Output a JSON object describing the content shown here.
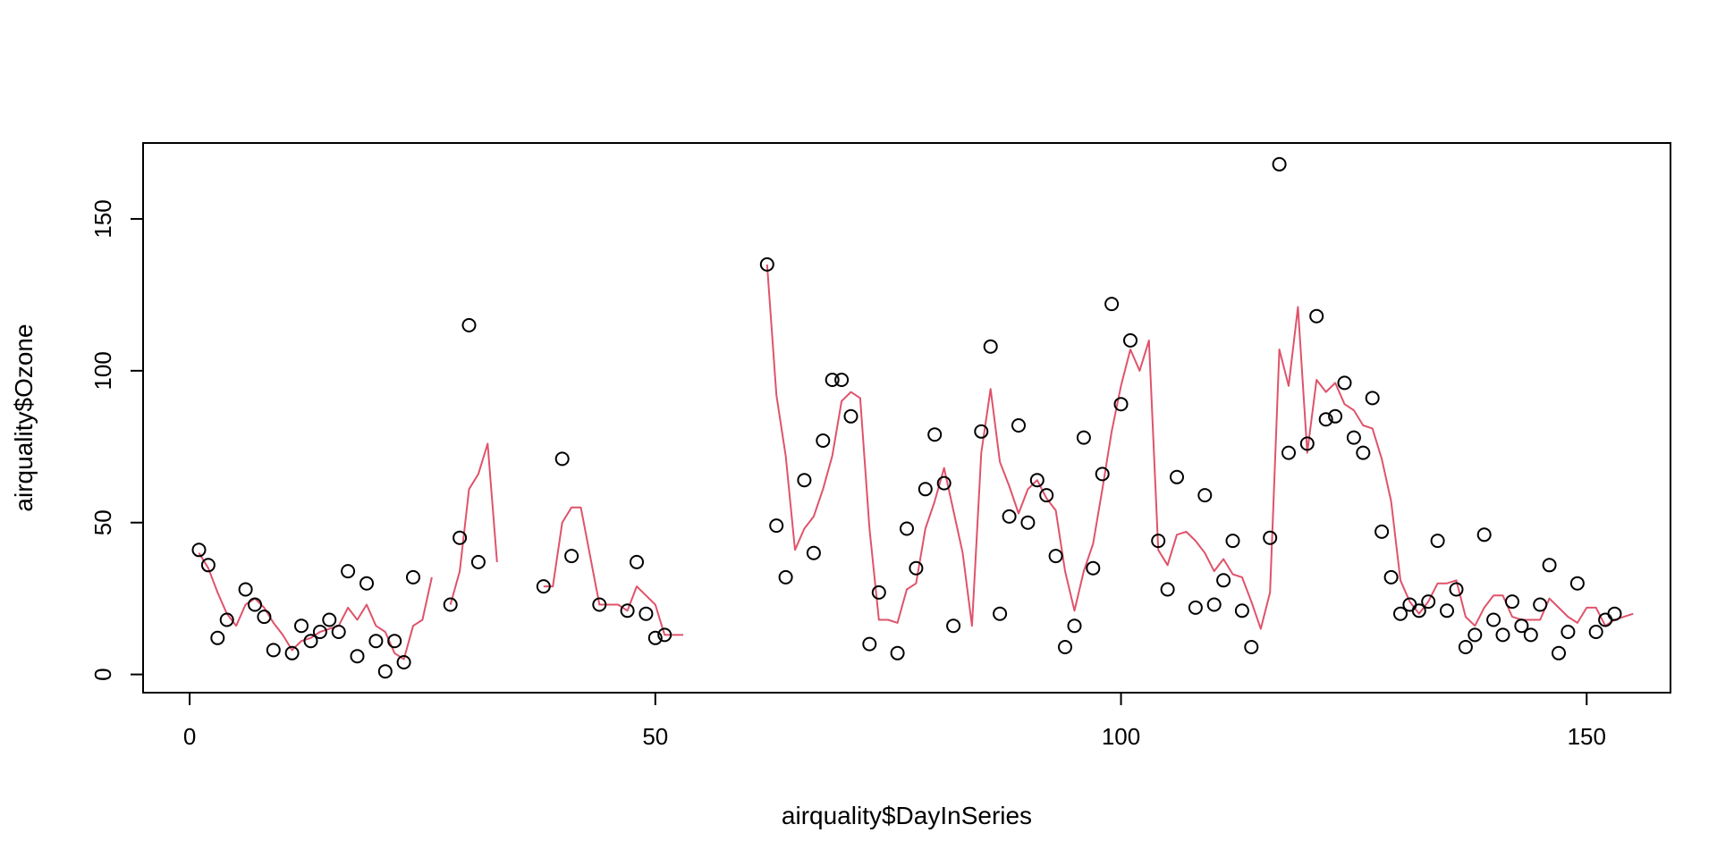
{
  "chart_data": {
    "type": "scatter",
    "xlabel": "airquality$DayInSeries",
    "ylabel": "airquality$Ozone",
    "xlim": [
      -5,
      159
    ],
    "ylim": [
      -6,
      175
    ],
    "x_ticks": [
      "0",
      "50",
      "100",
      "150"
    ],
    "y_ticks": [
      "0",
      "50",
      "100",
      "150"
    ],
    "grid": false,
    "legend": "none",
    "colors": {
      "points": "#000000",
      "line": "#DF536B",
      "axes": "#000000"
    },
    "series": [
      {
        "type": "scatter",
        "marker": "open-circle",
        "points": [
          [
            1,
            41
          ],
          [
            2,
            36
          ],
          [
            3,
            12
          ],
          [
            4,
            18
          ],
          [
            6,
            28
          ],
          [
            7,
            23
          ],
          [
            8,
            19
          ],
          [
            9,
            8
          ],
          [
            11,
            7
          ],
          [
            12,
            16
          ],
          [
            13,
            11
          ],
          [
            14,
            14
          ],
          [
            15,
            18
          ],
          [
            16,
            14
          ],
          [
            17,
            34
          ],
          [
            18,
            6
          ],
          [
            19,
            30
          ],
          [
            20,
            11
          ],
          [
            21,
            1
          ],
          [
            22,
            11
          ],
          [
            23,
            4
          ],
          [
            24,
            32
          ],
          [
            28,
            23
          ],
          [
            29,
            45
          ],
          [
            30,
            115
          ],
          [
            31,
            37
          ],
          [
            38,
            29
          ],
          [
            40,
            71
          ],
          [
            41,
            39
          ],
          [
            44,
            23
          ],
          [
            47,
            21
          ],
          [
            48,
            37
          ],
          [
            49,
            20
          ],
          [
            50,
            12
          ],
          [
            51,
            13
          ],
          [
            62,
            135
          ],
          [
            63,
            49
          ],
          [
            64,
            32
          ],
          [
            66,
            64
          ],
          [
            67,
            40
          ],
          [
            68,
            77
          ],
          [
            69,
            97
          ],
          [
            70,
            97
          ],
          [
            71,
            85
          ],
          [
            73,
            10
          ],
          [
            74,
            27
          ],
          [
            76,
            7
          ],
          [
            77,
            48
          ],
          [
            78,
            35
          ],
          [
            79,
            61
          ],
          [
            80,
            79
          ],
          [
            81,
            63
          ],
          [
            82,
            16
          ],
          [
            85,
            80
          ],
          [
            86,
            108
          ],
          [
            87,
            20
          ],
          [
            88,
            52
          ],
          [
            89,
            82
          ],
          [
            90,
            50
          ],
          [
            91,
            64
          ],
          [
            92,
            59
          ],
          [
            93,
            39
          ],
          [
            94,
            9
          ],
          [
            95,
            16
          ],
          [
            96,
            78
          ],
          [
            97,
            35
          ],
          [
            98,
            66
          ],
          [
            99,
            122
          ],
          [
            100,
            89
          ],
          [
            101,
            110
          ],
          [
            104,
            44
          ],
          [
            105,
            28
          ],
          [
            106,
            65
          ],
          [
            108,
            22
          ],
          [
            109,
            59
          ],
          [
            110,
            23
          ],
          [
            111,
            31
          ],
          [
            112,
            44
          ],
          [
            113,
            21
          ],
          [
            114,
            9
          ],
          [
            116,
            45
          ],
          [
            117,
            168
          ],
          [
            118,
            73
          ],
          [
            120,
            76
          ],
          [
            121,
            118
          ],
          [
            122,
            84
          ],
          [
            123,
            85
          ],
          [
            124,
            96
          ],
          [
            125,
            78
          ],
          [
            126,
            73
          ],
          [
            127,
            91
          ],
          [
            128,
            47
          ],
          [
            129,
            32
          ],
          [
            130,
            20
          ],
          [
            131,
            23
          ],
          [
            132,
            21
          ],
          [
            133,
            24
          ],
          [
            134,
            44
          ],
          [
            135,
            21
          ],
          [
            136,
            28
          ],
          [
            137,
            9
          ],
          [
            138,
            13
          ],
          [
            139,
            46
          ],
          [
            140,
            18
          ],
          [
            141,
            13
          ],
          [
            142,
            24
          ],
          [
            143,
            16
          ],
          [
            144,
            13
          ],
          [
            145,
            23
          ],
          [
            146,
            36
          ],
          [
            147,
            7
          ],
          [
            148,
            14
          ],
          [
            149,
            30
          ],
          [
            151,
            14
          ],
          [
            152,
            18
          ],
          [
            153,
            20
          ]
        ]
      },
      {
        "type": "line",
        "segments": [
          [
            [
              1,
              40
            ],
            [
              2,
              35
            ],
            [
              3,
              27
            ],
            [
              4,
              20
            ],
            [
              5,
              16
            ],
            [
              6,
              23
            ],
            [
              7,
              25
            ],
            [
              8,
              22
            ],
            [
              9,
              17
            ],
            [
              10,
              13
            ],
            [
              11,
              8
            ],
            [
              12,
              11
            ],
            [
              13,
              12
            ],
            [
              14,
              14
            ],
            [
              15,
              15
            ],
            [
              16,
              16
            ],
            [
              17,
              22
            ],
            [
              18,
              18
            ],
            [
              19,
              23
            ],
            [
              20,
              16
            ],
            [
              21,
              14
            ],
            [
              22,
              7
            ],
            [
              23,
              5
            ],
            [
              24,
              16
            ],
            [
              25,
              18
            ],
            [
              26,
              32
            ]
          ],
          [
            [
              28,
              23
            ],
            [
              29,
              34
            ],
            [
              30,
              61
            ],
            [
              31,
              66
            ],
            [
              32,
              76
            ],
            [
              33,
              37
            ]
          ],
          [
            [
              38,
              29
            ],
            [
              39,
              29
            ],
            [
              40,
              50
            ],
            [
              41,
              55
            ],
            [
              42,
              55
            ],
            [
              43,
              39
            ],
            [
              44,
              23
            ],
            [
              45,
              23
            ],
            [
              46,
              23
            ],
            [
              47,
              21
            ],
            [
              48,
              29
            ],
            [
              49,
              26
            ],
            [
              50,
              23
            ],
            [
              51,
              13
            ],
            [
              52,
              13
            ],
            [
              53,
              13
            ]
          ],
          [
            [
              62,
              135
            ],
            [
              63,
              92
            ],
            [
              64,
              72
            ],
            [
              65,
              41
            ],
            [
              66,
              48
            ],
            [
              67,
              52
            ],
            [
              68,
              61
            ],
            [
              69,
              72
            ],
            [
              70,
              90
            ],
            [
              71,
              93
            ],
            [
              72,
              91
            ],
            [
              73,
              48
            ],
            [
              74,
              18
            ],
            [
              75,
              18
            ],
            [
              76,
              17
            ],
            [
              77,
              28
            ],
            [
              78,
              30
            ],
            [
              79,
              48
            ],
            [
              80,
              57
            ],
            [
              81,
              68
            ],
            [
              82,
              54
            ],
            [
              83,
              40
            ],
            [
              84,
              16
            ],
            [
              85,
              73
            ],
            [
              86,
              94
            ],
            [
              87,
              70
            ],
            [
              88,
              62
            ],
            [
              89,
              53
            ],
            [
              90,
              61
            ],
            [
              91,
              64
            ],
            [
              92,
              58
            ],
            [
              93,
              54
            ],
            [
              94,
              34
            ],
            [
              95,
              21
            ],
            [
              96,
              34
            ],
            [
              97,
              43
            ],
            [
              98,
              61
            ],
            [
              99,
              80
            ],
            [
              100,
              95
            ],
            [
              101,
              107
            ],
            [
              102,
              100
            ],
            [
              103,
              110
            ],
            [
              104,
              41
            ],
            [
              105,
              36
            ],
            [
              106,
              46
            ],
            [
              107,
              47
            ],
            [
              108,
              44
            ],
            [
              109,
              40
            ],
            [
              110,
              34
            ],
            [
              111,
              38
            ],
            [
              112,
              33
            ],
            [
              113,
              32
            ],
            [
              114,
              24
            ],
            [
              115,
              15
            ],
            [
              116,
              27
            ],
            [
              117,
              107
            ],
            [
              118,
              95
            ],
            [
              119,
              121
            ],
            [
              120,
              73
            ],
            [
              121,
              97
            ],
            [
              122,
              93
            ],
            [
              123,
              96
            ],
            [
              124,
              89
            ],
            [
              125,
              87
            ],
            [
              126,
              82
            ],
            [
              127,
              81
            ],
            [
              128,
              71
            ],
            [
              129,
              57
            ],
            [
              130,
              31
            ],
            [
              131,
              24
            ],
            [
              132,
              20
            ],
            [
              133,
              24
            ],
            [
              134,
              30
            ],
            [
              135,
              30
            ],
            [
              136,
              31
            ],
            [
              137,
              19
            ],
            [
              138,
              16
            ],
            [
              139,
              22
            ],
            [
              140,
              26
            ],
            [
              141,
              26
            ],
            [
              142,
              19
            ],
            [
              143,
              18
            ],
            [
              144,
              18
            ],
            [
              145,
              18
            ],
            [
              146,
              25
            ],
            [
              147,
              22
            ],
            [
              148,
              19
            ],
            [
              149,
              17
            ],
            [
              150,
              22
            ],
            [
              151,
              22
            ],
            [
              152,
              16
            ],
            [
              153,
              18
            ],
            [
              154,
              19
            ],
            [
              155,
              20
            ]
          ]
        ]
      }
    ]
  }
}
